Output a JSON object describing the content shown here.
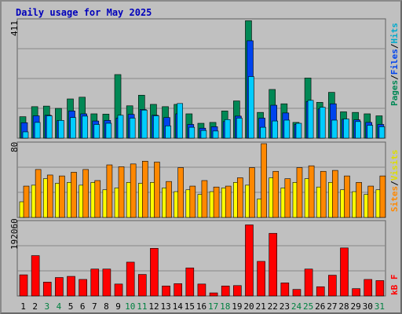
{
  "title": "Daily usage for May 2025",
  "colors": {
    "hits": "#00ccff",
    "files": "#0044ee",
    "pages": "#008855",
    "visits": "#ffff00",
    "sites": "#ff8800",
    "kbytes": "#ff0000",
    "weekend_label": "#008040",
    "weekday_label": "#000000"
  },
  "panel_labels": {
    "top": {
      "pages": "Pages",
      "files": "Files",
      "hits": "Hits",
      "sep": "/"
    },
    "mid": {
      "sites": "Sites",
      "visits": "Visits",
      "sep": "/"
    },
    "bot": {
      "kbytes": "kB F"
    }
  },
  "chart_data": {
    "type": "bar",
    "title": "Daily usage for May 2025",
    "days": [
      "1",
      "2",
      "3",
      "4",
      "5",
      "6",
      "7",
      "8",
      "9",
      "10",
      "11",
      "12",
      "13",
      "14",
      "15",
      "16",
      "17",
      "18",
      "19",
      "20",
      "21",
      "22",
      "23",
      "24",
      "25",
      "26",
      "27",
      "28",
      "29",
      "30",
      "31"
    ],
    "weekend_days": [
      "3",
      "4",
      "10",
      "11",
      "17",
      "18",
      "24",
      "25",
      "31"
    ],
    "panels": [
      {
        "name": "hits-files-pages",
        "ymax_label": "411",
        "ylim": [
          0,
          411
        ],
        "series": [
          {
            "name": "Pages",
            "values": [
              75,
              110,
              112,
              104,
              137,
              143,
              85,
              84,
              222,
              113,
              150,
              118,
              110,
              118,
              85,
              52,
              55,
              95,
              130,
              410,
              90,
              170,
              120,
              55,
              210,
              125,
              160,
              92,
              90,
              85,
              78
            ]
          },
          {
            "name": "Files",
            "values": [
              54,
              78,
              80,
              61,
              95,
              85,
              60,
              62,
              70,
              83,
              100,
              80,
              72,
              85,
              48,
              35,
              40,
              58,
              77,
              340,
              70,
              115,
              88,
              48,
              128,
              102,
              120,
              66,
              64,
              55,
              48
            ]
          },
          {
            "name": "Hits",
            "values": [
              22,
              55,
              78,
              62,
              72,
              77,
              48,
              52,
              80,
              70,
              98,
              78,
              43,
              121,
              38,
              27,
              25,
              65,
              70,
              215,
              38,
              60,
              63,
              52,
              132,
              108,
              63,
              67,
              58,
              45,
              40
            ]
          }
        ]
      },
      {
        "name": "visits-sites",
        "ymax_label": "80",
        "ylim": [
          0,
          80
        ],
        "series": [
          {
            "name": "Visits",
            "values": [
              17,
              35,
              42,
              37,
              38,
              35,
              38,
              30,
              32,
              38,
              37,
              38,
              32,
              28,
              30,
              25,
              28,
              32,
              38,
              35,
              20,
              43,
              32,
              38,
              42,
              33,
              38,
              30,
              28,
              25,
              30
            ]
          },
          {
            "name": "Sites",
            "values": [
              34,
              52,
              46,
              45,
              49,
              52,
              40,
              57,
              55,
              58,
              61,
              60,
              39,
              54,
              34,
              40,
              33,
              34,
              43,
              54,
              80,
              50,
              42,
              54,
              56,
              50,
              51,
              45,
              38,
              34,
              45
            ]
          }
        ]
      },
      {
        "name": "kbytes",
        "ymax_label": "192060",
        "ylim": [
          0,
          192060
        ],
        "series": [
          {
            "name": "kB F",
            "values": [
              55000,
              105000,
              36000,
              48000,
              51000,
              43000,
              70000,
              70000,
              31000,
              88000,
              56000,
              124000,
              26000,
              32000,
              73000,
              31000,
              8000,
              26000,
              27000,
              185000,
              90000,
              163000,
              34000,
              17000,
              70000,
              24000,
              54000,
              125000,
              19000,
              43000,
              40000
            ]
          }
        ]
      }
    ]
  }
}
